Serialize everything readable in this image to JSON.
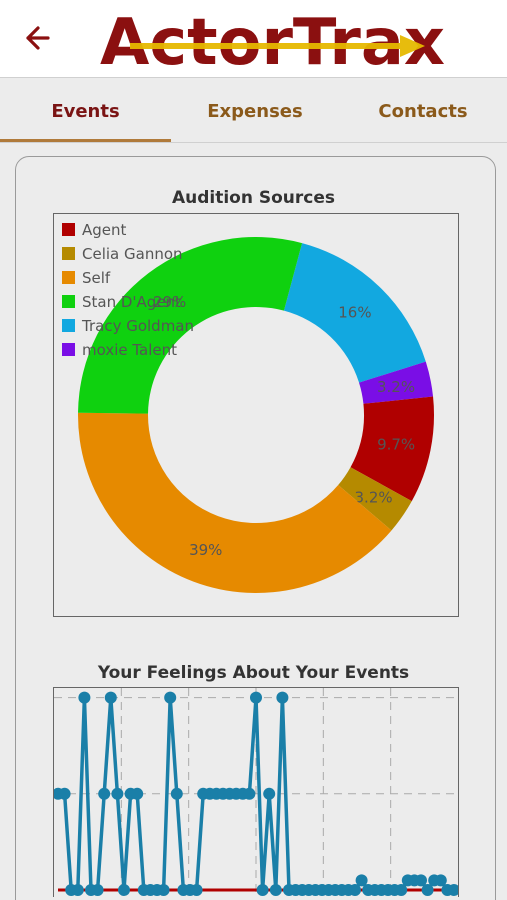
{
  "header": {
    "logo_text": "ActorTrax",
    "back_icon": "arrow-left-icon",
    "brand_colors": {
      "dark_red": "#8b1010",
      "gold": "#e6b800"
    }
  },
  "tabs": [
    {
      "label": "Events",
      "active": true
    },
    {
      "label": "Expenses",
      "active": false
    },
    {
      "label": "Contacts",
      "active": false
    }
  ],
  "chart_data": [
    {
      "type": "pie",
      "title": "Audition Sources",
      "donut": true,
      "legend_position": "top-left",
      "categories": [
        "Agent",
        "Celia Gannon",
        "Self",
        "Stan D'Agent",
        "Tracy Goldman",
        "moxie Talent"
      ],
      "values": [
        9.7,
        3.2,
        39,
        29,
        16,
        3.2
      ],
      "labels": [
        "9.7%",
        "3.2%",
        "39%",
        "29%",
        "16%",
        "3.2%"
      ],
      "colors": [
        "#b00000",
        "#b58a00",
        "#e68a00",
        "#0fd10f",
        "#12a8e0",
        "#7a0ee6"
      ]
    },
    {
      "type": "line",
      "title": "Your Feelings About Your Events",
      "grid": true,
      "ylim": [
        0,
        2.1
      ],
      "series": [
        {
          "color": "#1a7fa8",
          "values": [
            1,
            1,
            0,
            0,
            2,
            0,
            0,
            1,
            2,
            1,
            0,
            1,
            1,
            0,
            0,
            0,
            0,
            2,
            1,
            0,
            0,
            0,
            1,
            1,
            1,
            1,
            1,
            1,
            1,
            1,
            2,
            0,
            1,
            0,
            2,
            0,
            0,
            0,
            0,
            0,
            0,
            0,
            0,
            0,
            0,
            0,
            0.1,
            0,
            0,
            0,
            0,
            0,
            0,
            0.1,
            0.1,
            0.1,
            0,
            0.1,
            0.1,
            0,
            0
          ]
        },
        {
          "color": "#b00000",
          "values": [
            0,
            0,
            0,
            0,
            0,
            0,
            0,
            0,
            0,
            0,
            0,
            0,
            0,
            0,
            0,
            0,
            0,
            0,
            0,
            0,
            0,
            0,
            0,
            0,
            0,
            0,
            0,
            0,
            0,
            0,
            0,
            0,
            0,
            0,
            0,
            0,
            0,
            0,
            0,
            0,
            0,
            0,
            0,
            0,
            0,
            0,
            0,
            0,
            0,
            0,
            0,
            0,
            0,
            0,
            0,
            0,
            0,
            0,
            0,
            0,
            0
          ]
        }
      ]
    }
  ]
}
